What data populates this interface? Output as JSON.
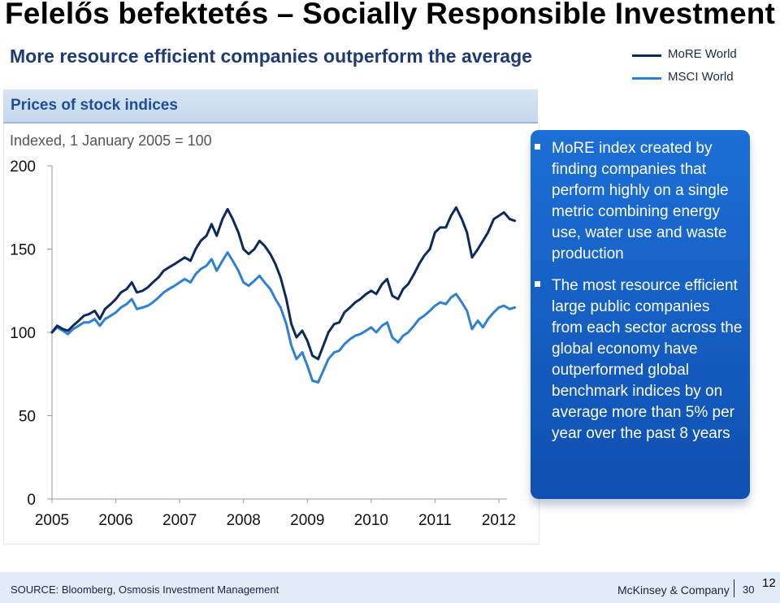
{
  "slide": {
    "title": "Felelős befektetés – Socially Responsible Investment",
    "subtitle": "More resource efficient companies outperform the average",
    "panel_title": "Prices of stock indices",
    "number": "12"
  },
  "legend": [
    {
      "label": "MoRE World",
      "color": "#0d2a5c"
    },
    {
      "label": "MSCI World",
      "color": "#2f7fd3"
    }
  ],
  "callout": {
    "bullets": [
      "MoRE index created by finding companies that perform highly on a single metric combining energy use, water use and waste production",
      "The most resource efficient large public companies from each sector across the global economy have outperformed global benchmark indices by on average more than 5% per year over the past 8 years"
    ]
  },
  "footer": {
    "source": "SOURCE: Bloomberg, Osmosis Investment Management",
    "company": "McKinsey & Company",
    "page": "30"
  },
  "chart_data": {
    "type": "line",
    "subtitle": "Indexed, 1 January 2005 = 100",
    "ylim": [
      0,
      200
    ],
    "yticks": [
      0,
      50,
      100,
      150,
      200
    ],
    "xlim": [
      2005,
      2012
    ],
    "xticks": [
      "2005",
      "2006",
      "2007",
      "2008",
      "2009",
      "2010",
      "2011",
      "2012"
    ],
    "grid": false,
    "colors": [
      "#0d2a5c",
      "#2f7fd3"
    ],
    "series": [
      {
        "name": "MoRE World",
        "points": [
          [
            2005.0,
            100
          ],
          [
            2005.08,
            104
          ],
          [
            2005.17,
            102
          ],
          [
            2005.25,
            101
          ],
          [
            2005.33,
            104
          ],
          [
            2005.42,
            107
          ],
          [
            2005.5,
            110
          ],
          [
            2005.58,
            111
          ],
          [
            2005.67,
            113
          ],
          [
            2005.75,
            108
          ],
          [
            2005.83,
            114
          ],
          [
            2005.92,
            117
          ],
          [
            2006.0,
            120
          ],
          [
            2006.08,
            124
          ],
          [
            2006.17,
            126
          ],
          [
            2006.25,
            130
          ],
          [
            2006.33,
            124
          ],
          [
            2006.42,
            125
          ],
          [
            2006.5,
            127
          ],
          [
            2006.58,
            130
          ],
          [
            2006.67,
            133
          ],
          [
            2006.75,
            137
          ],
          [
            2006.83,
            139
          ],
          [
            2006.92,
            141
          ],
          [
            2007.0,
            143
          ],
          [
            2007.08,
            145
          ],
          [
            2007.17,
            143
          ],
          [
            2007.25,
            150
          ],
          [
            2007.33,
            155
          ],
          [
            2007.42,
            158
          ],
          [
            2007.5,
            165
          ],
          [
            2007.58,
            158
          ],
          [
            2007.67,
            168
          ],
          [
            2007.75,
            174
          ],
          [
            2007.83,
            168
          ],
          [
            2007.92,
            160
          ],
          [
            2008.0,
            150
          ],
          [
            2008.08,
            147
          ],
          [
            2008.17,
            150
          ],
          [
            2008.25,
            155
          ],
          [
            2008.33,
            152
          ],
          [
            2008.42,
            147
          ],
          [
            2008.5,
            141
          ],
          [
            2008.58,
            133
          ],
          [
            2008.67,
            120
          ],
          [
            2008.75,
            105
          ],
          [
            2008.83,
            97
          ],
          [
            2008.92,
            101
          ],
          [
            2009.0,
            95
          ],
          [
            2009.08,
            86
          ],
          [
            2009.17,
            84
          ],
          [
            2009.25,
            92
          ],
          [
            2009.33,
            100
          ],
          [
            2009.42,
            105
          ],
          [
            2009.5,
            106
          ],
          [
            2009.58,
            112
          ],
          [
            2009.67,
            115
          ],
          [
            2009.75,
            118
          ],
          [
            2009.83,
            120
          ],
          [
            2009.92,
            123
          ],
          [
            2010.0,
            125
          ],
          [
            2010.08,
            123
          ],
          [
            2010.17,
            129
          ],
          [
            2010.25,
            132
          ],
          [
            2010.33,
            122
          ],
          [
            2010.42,
            120
          ],
          [
            2010.5,
            126
          ],
          [
            2010.58,
            129
          ],
          [
            2010.67,
            135
          ],
          [
            2010.75,
            141
          ],
          [
            2010.83,
            146
          ],
          [
            2010.92,
            150
          ],
          [
            2011.0,
            160
          ],
          [
            2011.08,
            163
          ],
          [
            2011.17,
            163
          ],
          [
            2011.25,
            170
          ],
          [
            2011.33,
            175
          ],
          [
            2011.42,
            168
          ],
          [
            2011.5,
            160
          ],
          [
            2011.58,
            145
          ],
          [
            2011.67,
            150
          ],
          [
            2011.75,
            155
          ],
          [
            2011.83,
            160
          ],
          [
            2011.92,
            168
          ],
          [
            2012.0,
            170
          ],
          [
            2012.08,
            172
          ],
          [
            2012.17,
            168
          ],
          [
            2012.25,
            167
          ]
        ]
      },
      {
        "name": "MSCI World",
        "points": [
          [
            2005.0,
            100
          ],
          [
            2005.08,
            103
          ],
          [
            2005.17,
            101
          ],
          [
            2005.25,
            99
          ],
          [
            2005.33,
            102
          ],
          [
            2005.42,
            104
          ],
          [
            2005.5,
            106
          ],
          [
            2005.58,
            106
          ],
          [
            2005.67,
            108
          ],
          [
            2005.75,
            104
          ],
          [
            2005.83,
            108
          ],
          [
            2005.92,
            110
          ],
          [
            2006.0,
            112
          ],
          [
            2006.08,
            115
          ],
          [
            2006.17,
            117
          ],
          [
            2006.25,
            120
          ],
          [
            2006.33,
            114
          ],
          [
            2006.42,
            115
          ],
          [
            2006.5,
            116
          ],
          [
            2006.58,
            118
          ],
          [
            2006.67,
            121
          ],
          [
            2006.75,
            124
          ],
          [
            2006.83,
            126
          ],
          [
            2006.92,
            128
          ],
          [
            2007.0,
            130
          ],
          [
            2007.08,
            132
          ],
          [
            2007.17,
            130
          ],
          [
            2007.25,
            135
          ],
          [
            2007.33,
            138
          ],
          [
            2007.42,
            140
          ],
          [
            2007.5,
            144
          ],
          [
            2007.58,
            137
          ],
          [
            2007.67,
            143
          ],
          [
            2007.75,
            148
          ],
          [
            2007.83,
            143
          ],
          [
            2007.92,
            137
          ],
          [
            2008.0,
            130
          ],
          [
            2008.08,
            128
          ],
          [
            2008.17,
            131
          ],
          [
            2008.25,
            134
          ],
          [
            2008.33,
            130
          ],
          [
            2008.42,
            126
          ],
          [
            2008.5,
            120
          ],
          [
            2008.58,
            115
          ],
          [
            2008.67,
            105
          ],
          [
            2008.75,
            92
          ],
          [
            2008.83,
            84
          ],
          [
            2008.92,
            88
          ],
          [
            2009.0,
            80
          ],
          [
            2009.08,
            71
          ],
          [
            2009.17,
            70
          ],
          [
            2009.25,
            77
          ],
          [
            2009.33,
            84
          ],
          [
            2009.42,
            88
          ],
          [
            2009.5,
            89
          ],
          [
            2009.58,
            93
          ],
          [
            2009.67,
            96
          ],
          [
            2009.75,
            98
          ],
          [
            2009.83,
            99
          ],
          [
            2009.92,
            101
          ],
          [
            2010.0,
            103
          ],
          [
            2010.08,
            100
          ],
          [
            2010.17,
            104
          ],
          [
            2010.25,
            106
          ],
          [
            2010.33,
            97
          ],
          [
            2010.42,
            94
          ],
          [
            2010.5,
            98
          ],
          [
            2010.58,
            100
          ],
          [
            2010.67,
            104
          ],
          [
            2010.75,
            108
          ],
          [
            2010.83,
            110
          ],
          [
            2010.92,
            113
          ],
          [
            2011.0,
            116
          ],
          [
            2011.08,
            118
          ],
          [
            2011.17,
            117
          ],
          [
            2011.25,
            121
          ],
          [
            2011.33,
            123
          ],
          [
            2011.42,
            118
          ],
          [
            2011.5,
            113
          ],
          [
            2011.58,
            102
          ],
          [
            2011.67,
            107
          ],
          [
            2011.75,
            103
          ],
          [
            2011.83,
            108
          ],
          [
            2011.92,
            112
          ],
          [
            2012.0,
            115
          ],
          [
            2012.08,
            116
          ],
          [
            2012.17,
            114
          ],
          [
            2012.25,
            115
          ]
        ]
      }
    ]
  }
}
